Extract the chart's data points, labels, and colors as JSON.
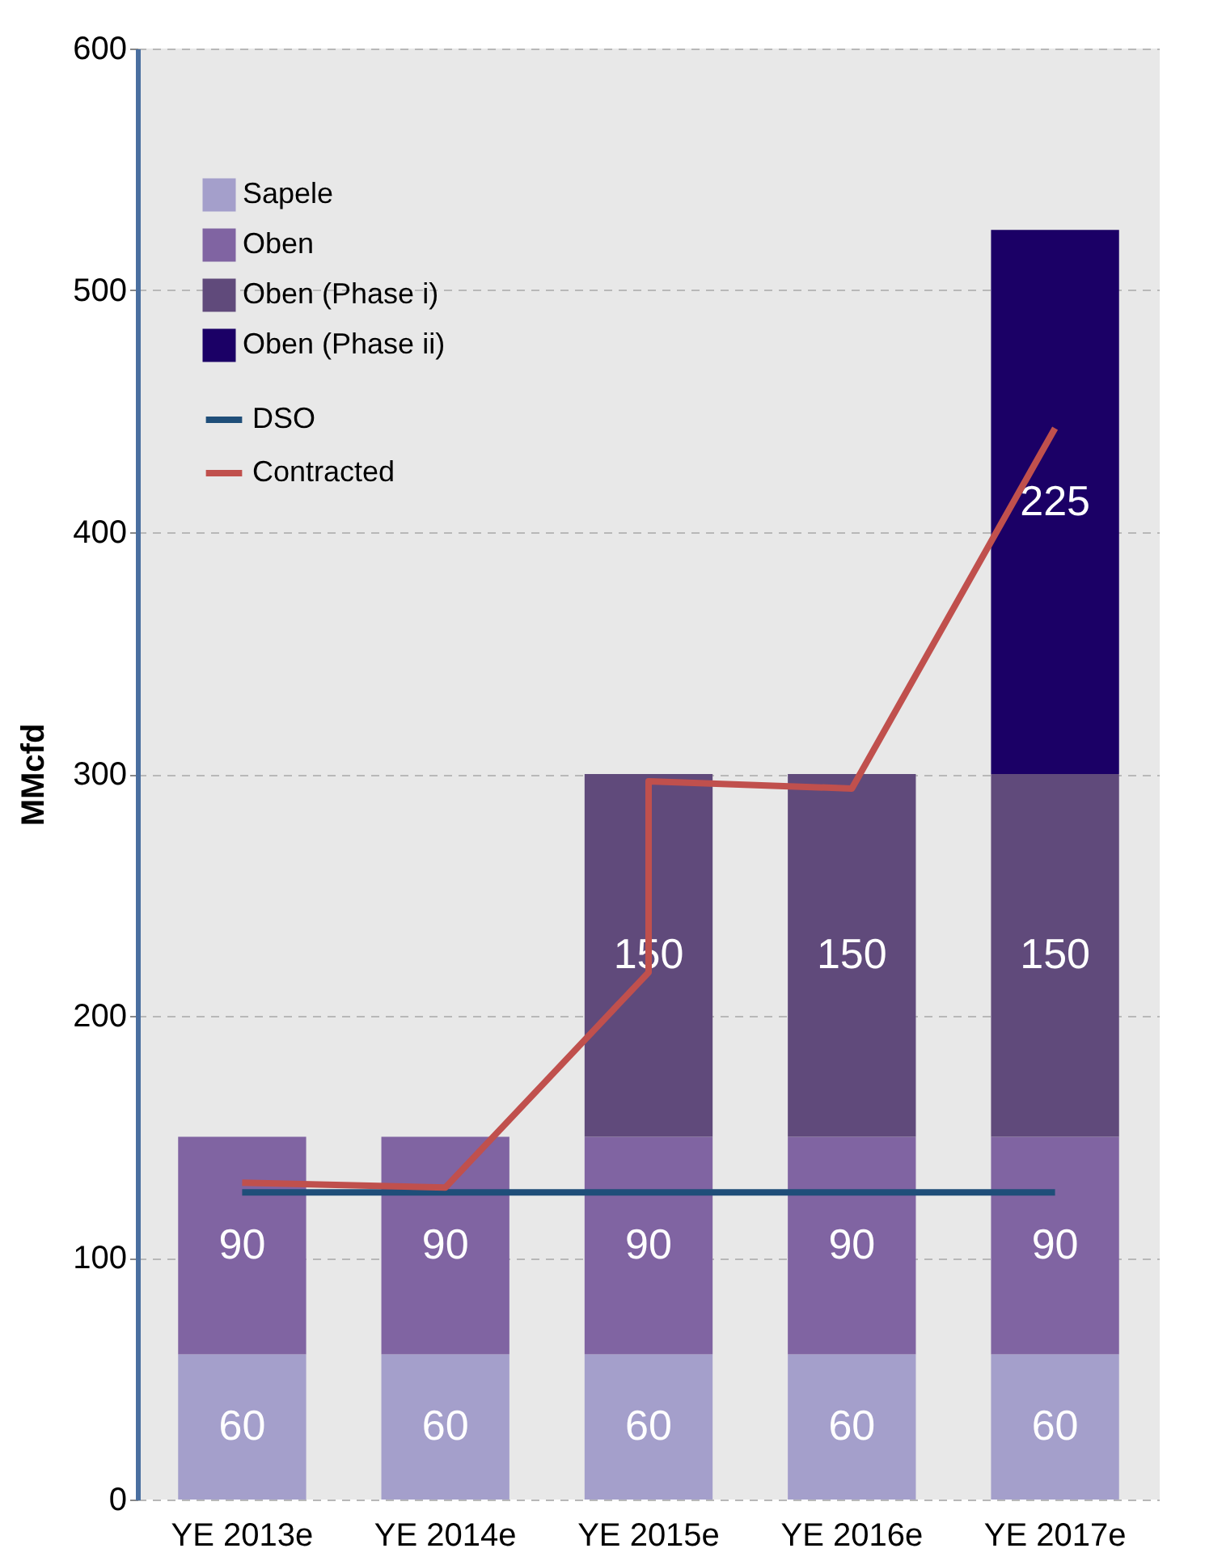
{
  "chart_data": {
    "type": "bar",
    "stacked": true,
    "ylabel": "MMcfd",
    "categories": [
      "YE 2013e",
      "YE 2014e",
      "YE 2015e",
      "YE 2016e",
      "YE 2017e"
    ],
    "ylim": [
      0,
      600
    ],
    "yticks": [
      0,
      100,
      200,
      300,
      400,
      500,
      600
    ],
    "grid": "y",
    "legend": "top left",
    "series": [
      {
        "name": "Sapele",
        "color": "#a49fcb",
        "values": [
          60,
          60,
          60,
          60,
          60
        ],
        "value_labels": [
          "60",
          "60",
          "60",
          "60",
          "60"
        ]
      },
      {
        "name": "Oben",
        "color": "#8064a2",
        "values": [
          90,
          90,
          90,
          90,
          90
        ],
        "value_labels": [
          "90",
          "90",
          "90",
          "90",
          "90"
        ]
      },
      {
        "name": "Oben (Phase i)",
        "color": "#604a7b",
        "values": [
          null,
          null,
          150,
          150,
          150
        ],
        "value_labels": [
          null,
          null,
          "150",
          "150",
          "150"
        ]
      },
      {
        "name": "Oben (Phase ii)",
        "color": "#1b0066",
        "values": [
          null,
          null,
          null,
          null,
          225
        ],
        "value_labels": [
          null,
          null,
          null,
          null,
          "225"
        ]
      },
      {
        "name": "DSO",
        "type": "line",
        "color": "#1f4e79",
        "values": [
          127,
          127,
          127,
          127,
          127
        ]
      },
      {
        "name": "Contracted",
        "type": "line",
        "color": "#c0504d",
        "x": [
          "YE 2013e",
          "YE 2014e",
          "YE 2015e",
          "YE 2015e",
          "YE 2016e",
          "YE 2017e"
        ],
        "values": [
          131,
          129,
          218,
          297,
          294,
          443
        ]
      }
    ]
  }
}
